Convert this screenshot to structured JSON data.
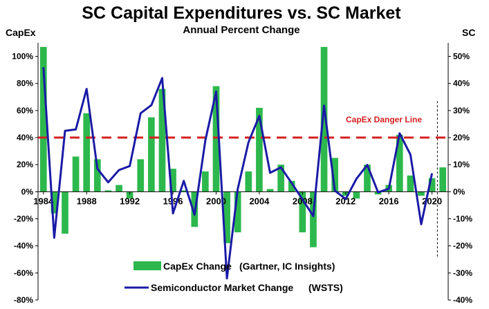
{
  "chart_data": {
    "type": "bar+line",
    "title": "SC Capital Expenditures vs. SC Market",
    "subtitle": "Annual Percent Change",
    "y_left_label": "CapEx",
    "y_right_label": "SC",
    "y_left_range": [
      -80,
      110
    ],
    "y_right_range": [
      -40,
      55
    ],
    "y_left_ticks": [
      "-80%",
      "-60%",
      "-40%",
      "-20%",
      "0%",
      "20%",
      "40%",
      "60%",
      "80%",
      "100%"
    ],
    "y_left_tick_values": [
      -80,
      -60,
      -40,
      -20,
      0,
      20,
      40,
      60,
      80,
      100
    ],
    "y_right_ticks": [
      "-40%",
      "-30%",
      "-20%",
      "-10%",
      "0%",
      "10%",
      "20%",
      "30%",
      "40%",
      "50%"
    ],
    "y_right_tick_values": [
      -40,
      -30,
      -20,
      -10,
      0,
      10,
      20,
      30,
      40,
      50
    ],
    "x_tick_labels": [
      "1984",
      "1988",
      "1992",
      "1996",
      "2000",
      "2004",
      "2008",
      "2012",
      "2016",
      "2020"
    ],
    "x_tick_years": [
      1984,
      1988,
      1992,
      1996,
      2000,
      2004,
      2008,
      2012,
      2016,
      2020
    ],
    "years": [
      1984,
      1985,
      1986,
      1987,
      1988,
      1989,
      1990,
      1991,
      1992,
      1993,
      1994,
      1995,
      1996,
      1997,
      1998,
      1999,
      2000,
      2001,
      2002,
      2003,
      2004,
      2005,
      2006,
      2007,
      2008,
      2009,
      2010,
      2011,
      2012,
      2013,
      2014,
      2015,
      2016,
      2017,
      2018,
      2019,
      2020,
      2021
    ],
    "series": [
      {
        "name": "CapEx Change",
        "source": "(Gartner, IC Insights)",
        "kind": "bar",
        "axis": "left",
        "color": "#2db84d",
        "values": [
          107,
          -16,
          -31,
          26,
          58,
          24,
          1,
          5,
          -5,
          24,
          55,
          76,
          17,
          1,
          -26,
          15,
          78,
          -38,
          -30,
          15,
          62,
          2,
          20,
          8,
          -30,
          -41,
          107,
          25,
          -3,
          -5,
          20,
          -2,
          5,
          42,
          12,
          -3,
          10,
          18
        ]
      },
      {
        "name": "Semiconductor Market Change",
        "source": "(WSTS)",
        "kind": "line",
        "axis": "right",
        "color": "#1a1aa6",
        "values": [
          46,
          -17,
          22.5,
          23,
          38,
          8.5,
          3.5,
          8,
          9.5,
          29,
          32,
          42,
          -8,
          4,
          -8.5,
          19,
          37,
          -32,
          1,
          18.3,
          28,
          7,
          9,
          3.2,
          -2.8,
          -9,
          31.8,
          0.4,
          -2.7,
          4.8,
          9.9,
          -0.2,
          1.1,
          21.6,
          13.7,
          -12,
          6.8,
          null
        ]
      }
    ],
    "danger_line": {
      "label": "CapEx Danger Line",
      "value": 40,
      "color": "#d42020"
    },
    "forecast_divider_year": 2020.5,
    "legend_position": "bottom"
  }
}
